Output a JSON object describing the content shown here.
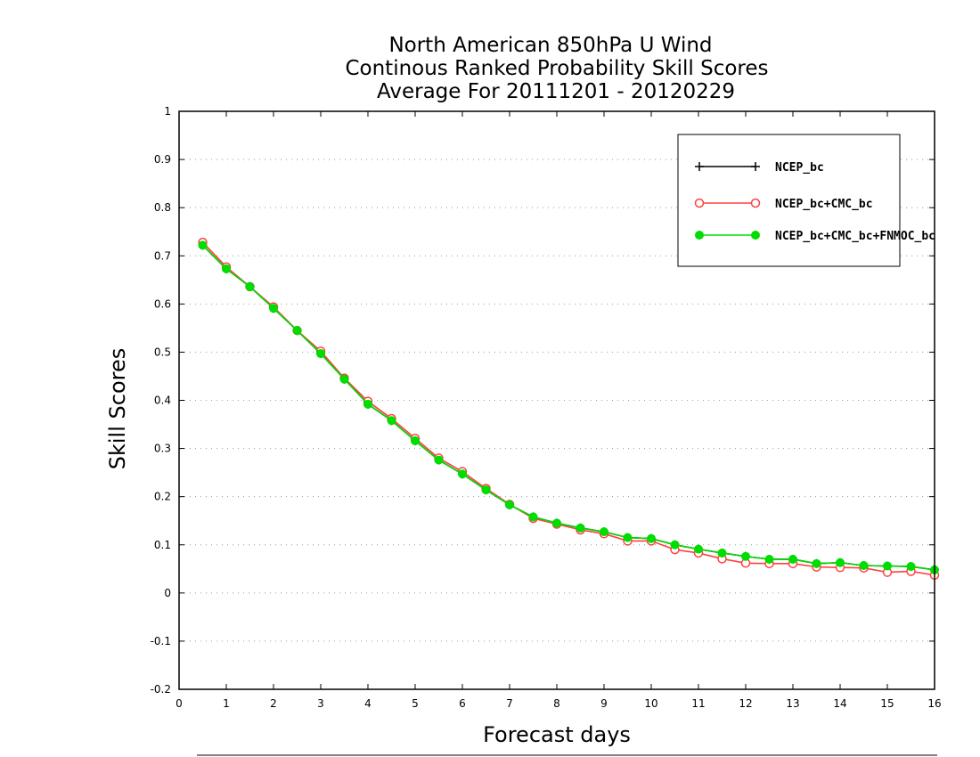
{
  "chart_data": {
    "type": "line",
    "title": [
      "North American 850hPa U Wind",
      "Continous Ranked Probability Skill Scores",
      "Average For 20111201 - 20120229"
    ],
    "xlabel": "Forecast days",
    "ylabel": "Skill Scores",
    "xlim": [
      0,
      16
    ],
    "ylim": [
      -0.2,
      1
    ],
    "xticks": [
      "0",
      "1",
      "2",
      "3",
      "4",
      "5",
      "6",
      "7",
      "8",
      "9",
      "10",
      "11",
      "12",
      "13",
      "14",
      "15",
      "16"
    ],
    "yticks": [
      "-0.2",
      "-0.1",
      "0",
      "0.1",
      "0.2",
      "0.3",
      "0.4",
      "0.5",
      "0.6",
      "0.7",
      "0.8",
      "0.9",
      "1"
    ],
    "grid": "horizontal dotted",
    "legend_position": "top-right",
    "x": [
      0.5,
      1,
      1.5,
      2,
      2.5,
      3,
      3.5,
      4,
      4.5,
      5,
      5.5,
      6,
      6.5,
      7,
      7.5,
      8,
      8.5,
      9,
      9.5,
      10,
      10.5,
      11,
      11.5,
      12,
      12.5,
      13,
      13.5,
      14,
      14.5,
      15,
      15.5,
      16
    ],
    "series": [
      {
        "name": "NCEP_bc",
        "color": "#000000",
        "marker": "plus",
        "values": [
          0.722,
          0.673,
          0.636,
          0.591,
          0.545,
          0.497,
          0.444,
          0.392,
          0.358,
          0.316,
          0.276,
          0.247,
          0.214,
          0.183,
          0.158,
          0.145,
          0.135,
          0.127,
          0.115,
          0.113,
          0.1,
          0.091,
          0.083,
          0.076,
          0.07,
          0.07,
          0.061,
          0.063,
          0.057,
          0.056,
          0.055,
          0.048
        ]
      },
      {
        "name": "NCEP_bc+CMC_bc",
        "color": "#ff4040",
        "marker": "open-circle",
        "values": [
          0.728,
          0.677,
          0.636,
          0.594,
          0.545,
          0.502,
          0.446,
          0.398,
          0.362,
          0.321,
          0.28,
          0.252,
          0.217,
          0.184,
          0.155,
          0.143,
          0.131,
          0.123,
          0.108,
          0.108,
          0.09,
          0.083,
          0.071,
          0.062,
          0.061,
          0.061,
          0.054,
          0.053,
          0.052,
          0.043,
          0.045,
          0.037
        ]
      },
      {
        "name": "NCEP_bc+CMC_bc+FNMOC_bc",
        "color": "#00dd00",
        "marker": "filled-circle",
        "values": [
          0.722,
          0.673,
          0.636,
          0.591,
          0.545,
          0.497,
          0.444,
          0.392,
          0.358,
          0.316,
          0.276,
          0.247,
          0.214,
          0.183,
          0.158,
          0.145,
          0.135,
          0.127,
          0.115,
          0.113,
          0.1,
          0.091,
          0.083,
          0.076,
          0.07,
          0.07,
          0.061,
          0.063,
          0.057,
          0.056,
          0.055,
          0.048
        ]
      }
    ]
  }
}
